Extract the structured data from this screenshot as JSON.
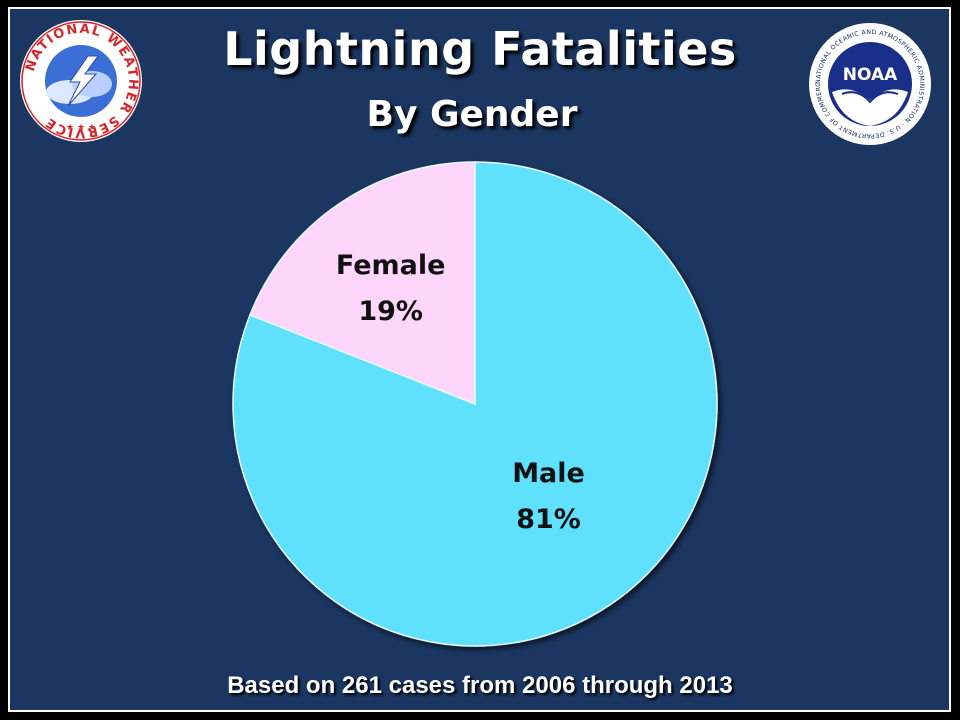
{
  "title": "Lightning Fatalities",
  "subtitle": "By Gender",
  "footer": "Based on 261 cases from 2006 through 2013",
  "logos": {
    "left": {
      "icon": "national-weather-service-logo",
      "text": "NATIONAL WEATHER SERVICE"
    },
    "right": {
      "icon": "noaa-logo",
      "text": "NOAA",
      "ring_text": "NATIONAL OCEANIC AND ATMOSPHERIC ADMINISTRATION · U.S. DEPARTMENT OF COMMERCE"
    }
  },
  "colors": {
    "background": "#1b3660",
    "male": "#5fe1fe",
    "female": "#ffd6fb"
  },
  "chart_data": {
    "type": "pie",
    "title": "Lightning Fatalities",
    "subtitle": "By Gender",
    "slices": [
      {
        "label": "Male",
        "value": 81,
        "display": "81%",
        "color": "#5fe1fe"
      },
      {
        "label": "Female",
        "value": 19,
        "display": "19%",
        "color": "#ffd6fb"
      }
    ],
    "start": "12 o'clock, clockwise",
    "legend": "none (labels on slices)"
  }
}
